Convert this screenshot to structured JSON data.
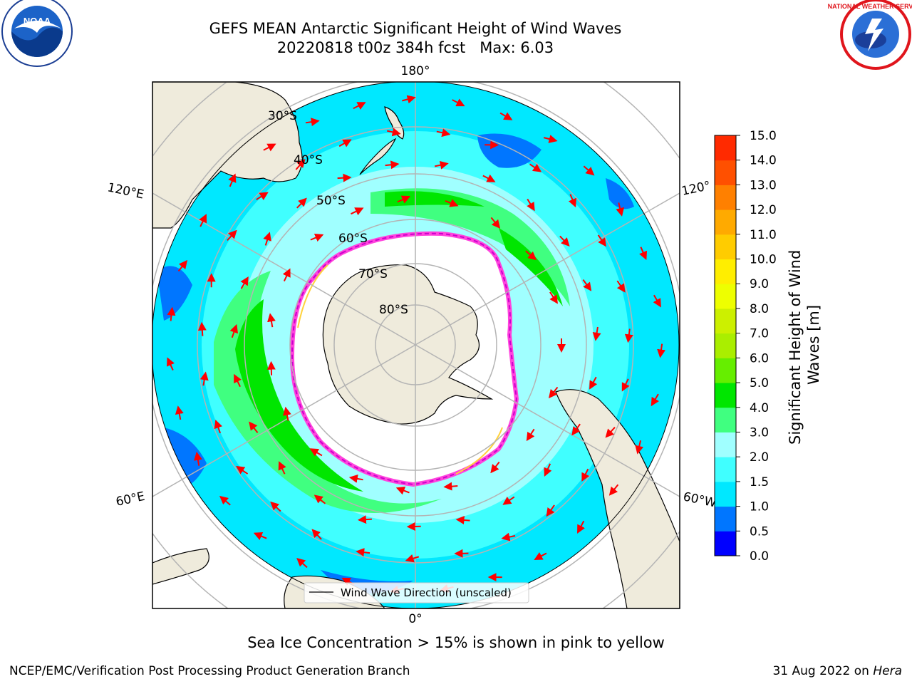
{
  "title": {
    "line1": "GEFS MEAN Antarctic Significant Height of Wind Waves",
    "line2": "20220818 t00z 384h fcst   Max: 6.03"
  },
  "logos": {
    "left": "NOAA",
    "right": "NATIONAL WEATHER SERVICE"
  },
  "map": {
    "projection": "south-polar-stereographic",
    "longitude_labels": {
      "top": "180°",
      "bottom": "0°",
      "upper_left": "120°E",
      "upper_right": "120°",
      "lower_left": "60°E",
      "lower_right": "60°W"
    },
    "latitude_labels": [
      "30°S",
      "40°S",
      "50°S",
      "60°S",
      "70°S",
      "80°S"
    ],
    "legend_label": "Wind Wave Direction (unscaled)",
    "colors": {
      "land": "#efebdc",
      "ice_edge_pink": "#ff44dd",
      "ice_edge_magenta": "#cc00cc",
      "ice_fringe_yellow": "#ffd23c",
      "grid": "#b4b4b4",
      "arrow": "#ff0000"
    }
  },
  "colorbar": {
    "label": "Significant Height of Wind\nWaves [m]",
    "ticks": [
      "0.0",
      "0.5",
      "1.0",
      "1.5",
      "2.0",
      "3.0",
      "4.0",
      "5.0",
      "6.0",
      "7.0",
      "8.0",
      "9.0",
      "10.0",
      "11.0",
      "12.0",
      "13.0",
      "14.0",
      "15.0"
    ],
    "colors": [
      "#0000ff",
      "#0076ff",
      "#00e8ff",
      "#40ffff",
      "#a0ffff",
      "#40ff80",
      "#00e600",
      "#66ee00",
      "#aaee00",
      "#ccf000",
      "#eeff00",
      "#ffee00",
      "#ffcc00",
      "#ffaa00",
      "#ff8000",
      "#ff5000",
      "#ff2a00"
    ]
  },
  "footer": {
    "note": "Sea Ice Concentration > 15% is shown in pink to yellow",
    "credit": "NCEP/EMC/Verification Post Processing Product Generation Branch",
    "date": "31 Aug 2022 on ",
    "machine": "Hera"
  }
}
